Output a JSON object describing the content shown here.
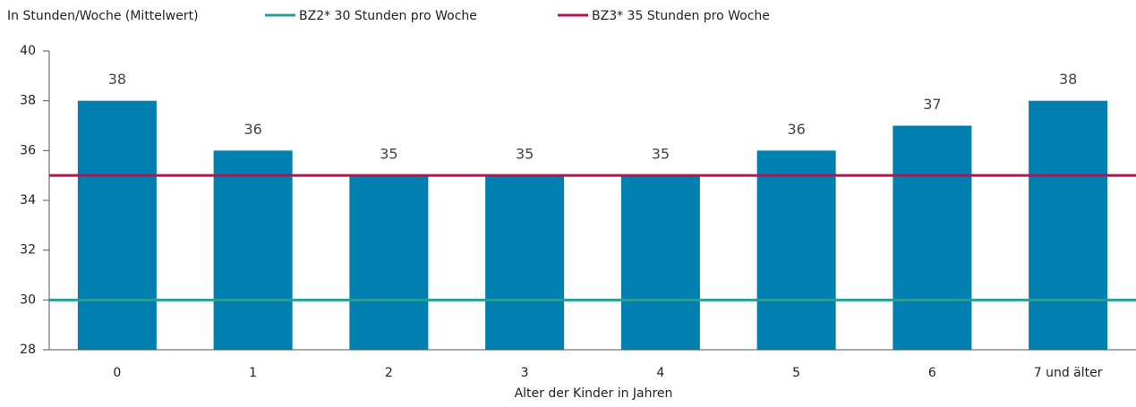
{
  "chart_data": {
    "type": "bar",
    "y_label": "In Stunden/Woche (Mittelwert)",
    "x_label": "Alter der Kinder in Jahren",
    "categories": [
      "0",
      "1",
      "2",
      "3",
      "4",
      "5",
      "6",
      "7 und älter"
    ],
    "values": [
      38,
      36,
      35,
      35,
      35,
      36,
      37,
      38
    ],
    "color": "#0080b0",
    "ylim": [
      28,
      40
    ],
    "yticks": [
      28,
      30,
      32,
      34,
      36,
      38,
      40
    ],
    "reference_lines": [
      {
        "name": "BZ2* 30 Stunden pro Woche",
        "value": 30,
        "color": "#2a9d98"
      },
      {
        "name": "BZ3* 35 Stunden pro Woche",
        "value": 35,
        "color": "#b5134f"
      }
    ]
  }
}
